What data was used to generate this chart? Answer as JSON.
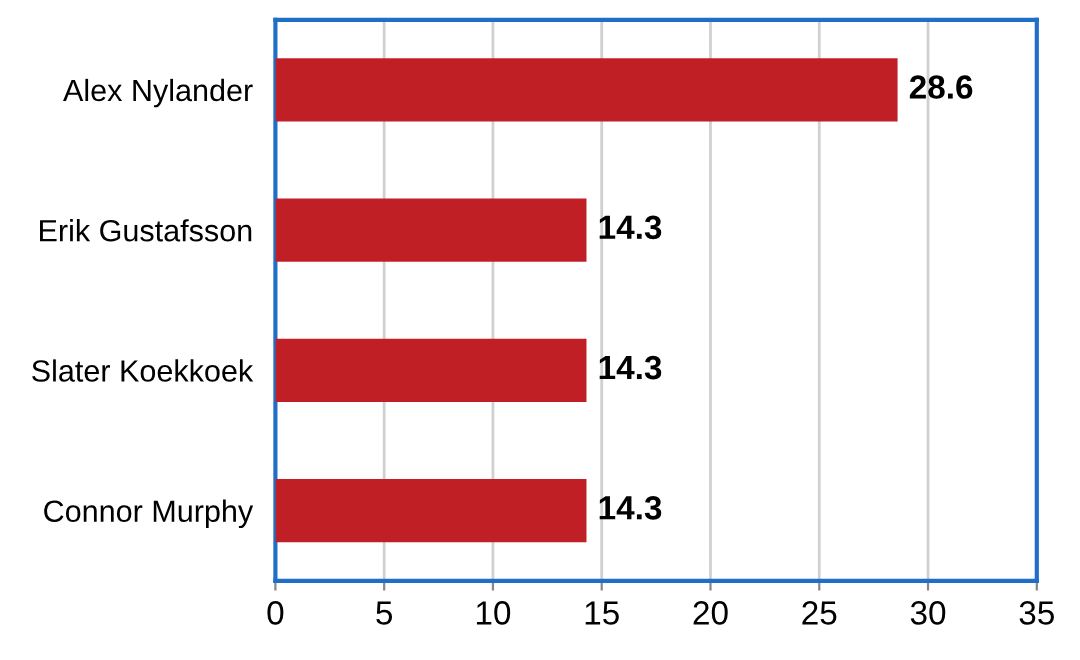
{
  "chart_data": {
    "type": "bar",
    "orientation": "horizontal",
    "categories": [
      "Alex Nylander",
      "Erik Gustafsson",
      "Slater Koekkoek",
      "Connor Murphy"
    ],
    "values": [
      28.6,
      14.3,
      14.3,
      14.3
    ],
    "color": "#c01f26",
    "xlim": [
      0,
      35
    ],
    "xticks": [
      0,
      5,
      10,
      15,
      20,
      25,
      30,
      35
    ],
    "grid": "x",
    "data_labels": true
  }
}
